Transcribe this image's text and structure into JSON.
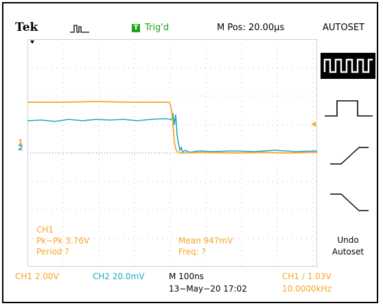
{
  "header": {
    "brand": "Tek",
    "acquire_icon": "pulse-acquisition-icon",
    "trigger_icon_letter": "T",
    "trigger_status": "Trig'd",
    "m_pos": "M Pos: 20.00µs",
    "menu_title": "AUTOSET"
  },
  "menu": {
    "buttons": [
      {
        "icon": "multi-cycle-square-wave-icon",
        "selected": true
      },
      {
        "icon": "single-pulse-icon",
        "selected": false
      },
      {
        "icon": "rising-edge-icon",
        "selected": false
      },
      {
        "icon": "falling-edge-icon",
        "selected": false
      }
    ],
    "undo_label_1": "Undo",
    "undo_label_2": "Autoset"
  },
  "measurements": {
    "ch_label": "CH1",
    "pkpk": "Pk−Pk 3.76V",
    "period": "Period ?",
    "mean": "Mean 947mV",
    "freq": "Freq: ?"
  },
  "status": {
    "ch1_scale": "CH1  2.00V",
    "ch2_scale": "CH2  20.0mV",
    "timebase": "M 100ns",
    "date": "13−May−20 17:02",
    "trigger": "CH1 ∕ 1.03V",
    "trig_freq": "10.0000kHz"
  },
  "markers": {
    "ch1": "1",
    "ch2": "2"
  },
  "colors": {
    "ch1": "#f5a623",
    "ch2": "#1fa7c3",
    "trigger_ok": "#1fa21f"
  }
}
